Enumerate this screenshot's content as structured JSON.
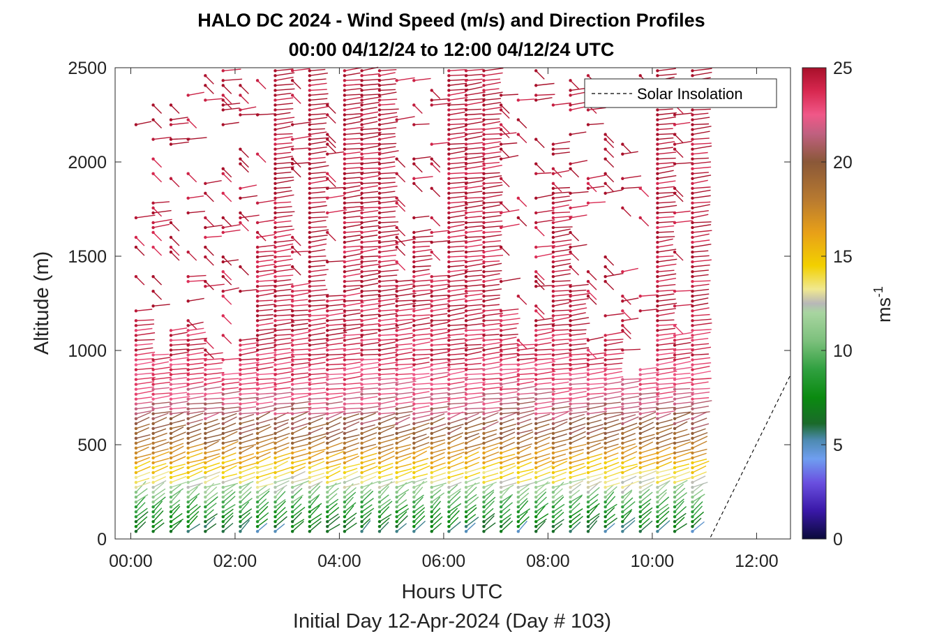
{
  "chart_data": {
    "type": "scatter",
    "title": "HALO DC 2024 - Wind Speed (m/s) and Direction Profiles",
    "subtitle": "00:00 04/12/24 to 12:00 04/12/24  UTC",
    "xlabel": "Hours UTC",
    "xlabel2": "Initial Day 12-Apr-2024 (Day # 103)",
    "ylabel": "Altitude (m)",
    "xlim": [
      -0.3,
      12.65
    ],
    "ylim": [
      0,
      2500
    ],
    "x_ticks": [
      0,
      2,
      4,
      6,
      8,
      10,
      12
    ],
    "x_tick_labels": [
      "00:00",
      "02:00",
      "04:00",
      "06:00",
      "08:00",
      "10:00",
      "12:00"
    ],
    "y_ticks": [
      0,
      500,
      1000,
      1500,
      2000,
      2500
    ],
    "y_tick_labels": [
      "0",
      "500",
      "1000",
      "1500",
      "2000",
      "2500"
    ],
    "colorbar": {
      "label": "ms",
      "label_exponent": "-1",
      "ticks": [
        0,
        5,
        10,
        15,
        20,
        25
      ],
      "tick_labels": [
        "0",
        "5",
        "10",
        "15",
        "20",
        "25"
      ],
      "range": [
        0,
        25
      ]
    },
    "legend": {
      "entries": [
        "Solar Insolation"
      ],
      "location": "top-right"
    },
    "solar_insolation": {
      "x": [
        -0.3,
        11.1,
        12.65
      ],
      "y": [
        0,
        0,
        870
      ]
    },
    "profile_times": [
      0.1,
      0.43,
      0.77,
      1.1,
      1.43,
      1.77,
      2.1,
      2.43,
      2.77,
      3.1,
      3.43,
      3.77,
      4.1,
      4.43,
      4.77,
      5.1,
      5.43,
      5.77,
      6.1,
      6.43,
      6.77,
      7.1,
      7.43,
      7.77,
      8.1,
      8.43,
      8.77,
      9.1,
      9.43,
      9.77,
      10.1,
      10.43,
      10.77
    ],
    "speed_profile": {
      "altitudes": [
        0,
        80,
        200,
        300,
        420,
        520,
        650,
        800,
        1000,
        1300,
        2500
      ],
      "speeds": [
        4.5,
        7,
        10,
        13,
        16,
        19,
        21,
        22.5,
        24,
        24.5,
        25
      ]
    }
  }
}
